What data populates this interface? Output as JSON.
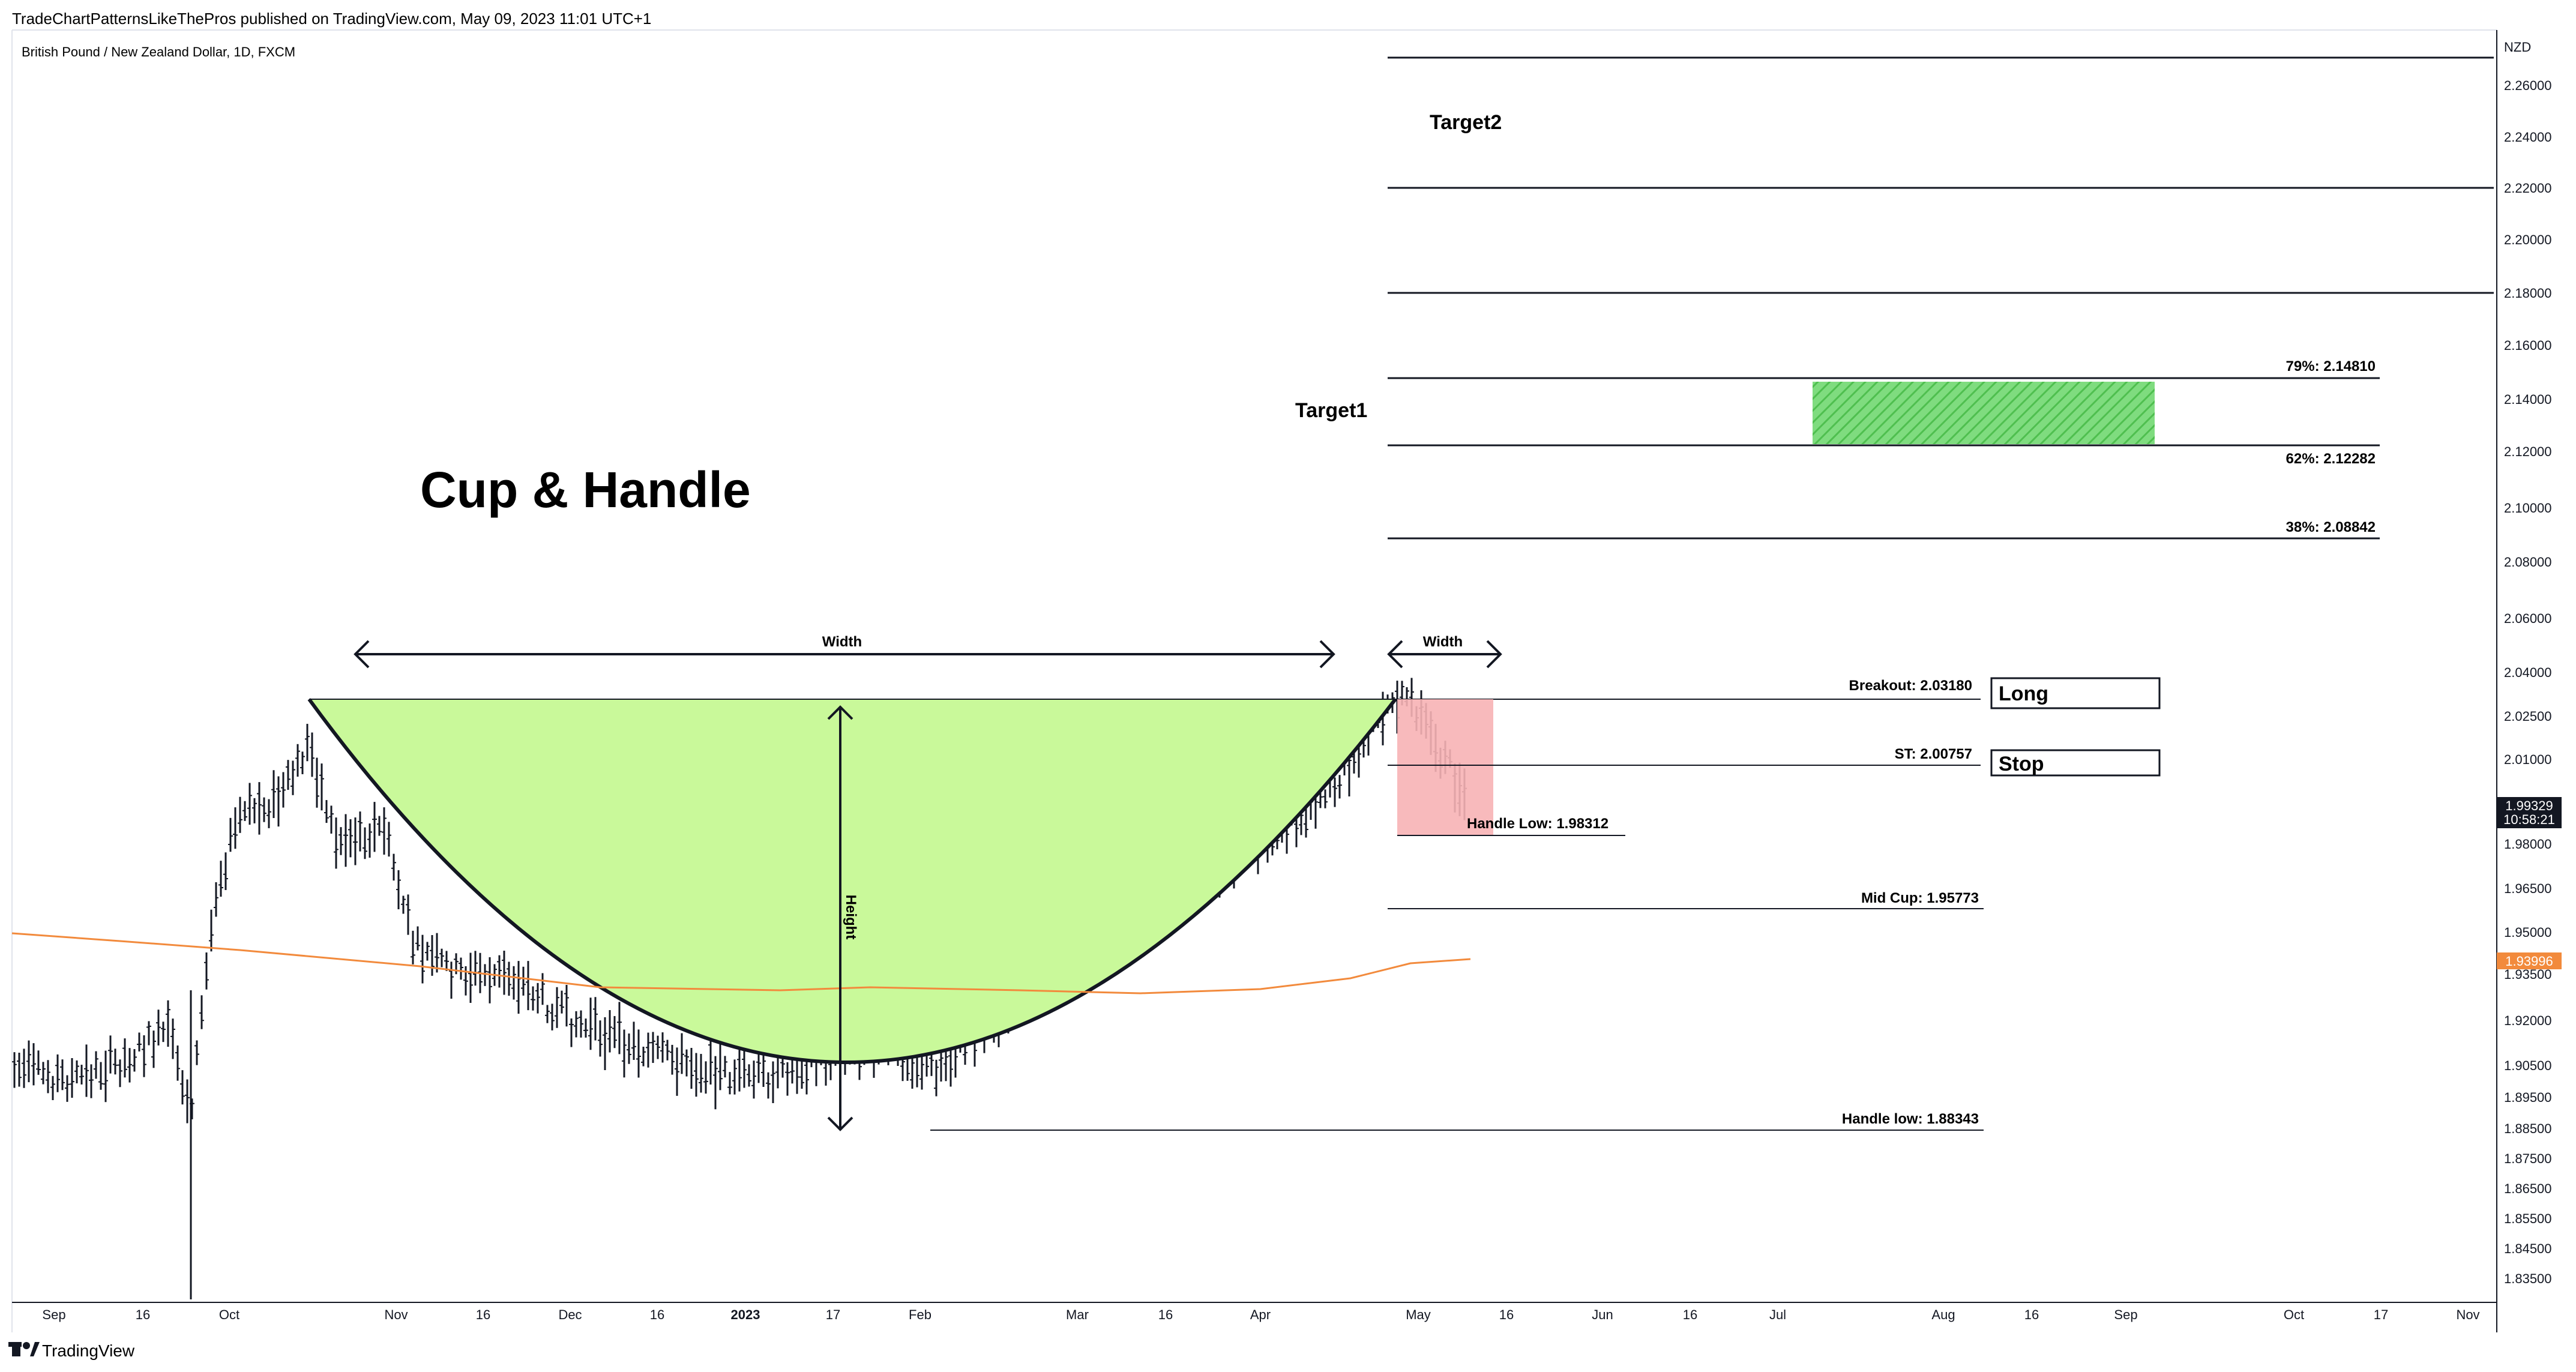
{
  "publisher_line": "TradeChartPatternsLikeThePros published on TradingView.com, May 09, 2023 11:01 UTC+1",
  "symbol_line": "British Pound / New Zealand Dollar, 1D, FXCM",
  "currency": "NZD",
  "footer_brand": "TradingView",
  "colors": {
    "cup_fill": "#c9f99a",
    "handle_fill": "#f7b3b5",
    "target_zone": "#6ad26a",
    "ma_line": "#f28a3c",
    "price_badge": "#131722",
    "ma_badge": "#f28a3c"
  },
  "chart_data": {
    "type": "line",
    "title": "Cup & Handle",
    "y_axis": {
      "unit": "NZD",
      "ticks": [
        "2.26000",
        "2.24000",
        "2.22000",
        "2.20000",
        "2.18000",
        "2.16000",
        "2.14000",
        "2.12000",
        "2.10000",
        "2.08000",
        "2.06000",
        "2.04000",
        "2.02500",
        "2.01000",
        "1.98000",
        "1.96500",
        "1.95000",
        "1.93500",
        "1.92000",
        "1.90500",
        "1.89500",
        "1.88500",
        "1.87500",
        "1.86500",
        "1.85500",
        "1.84500",
        "1.83500"
      ]
    },
    "x_axis": {
      "ticks": [
        "Sep",
        "16",
        "Oct",
        "Nov",
        "16",
        "Dec",
        "16",
        "2023",
        "17",
        "Feb",
        "Mar",
        "16",
        "Apr",
        "May",
        "16",
        "Jun",
        "16",
        "Jul",
        "Aug",
        "16",
        "Sep",
        "Oct",
        "17",
        "Nov"
      ]
    },
    "last_price": "1.99329",
    "countdown": "10:58:21",
    "ma_value": "1.93996",
    "levels": [
      {
        "label": "79%: 2.14810",
        "value": 2.1481
      },
      {
        "label": "62%: 2.12282",
        "value": 2.12282
      },
      {
        "label": "38%: 2.08842",
        "value": 2.08842
      },
      {
        "label": "Breakout: 2.03180",
        "value": 2.0318
      },
      {
        "label": "ST: 2.00757",
        "value": 2.00757
      },
      {
        "label": "Handle Low: 1.98312",
        "value": 1.98312
      },
      {
        "label": "Mid Cup: 1.95773",
        "value": 1.95773
      },
      {
        "label": "Handle low: 1.88343",
        "value": 1.88343
      }
    ],
    "annotations": {
      "width_left": "Width",
      "width_right": "Width",
      "height": "Height",
      "target1": "Target1",
      "target2": "Target2",
      "long": "Long",
      "stop": "Stop"
    }
  }
}
